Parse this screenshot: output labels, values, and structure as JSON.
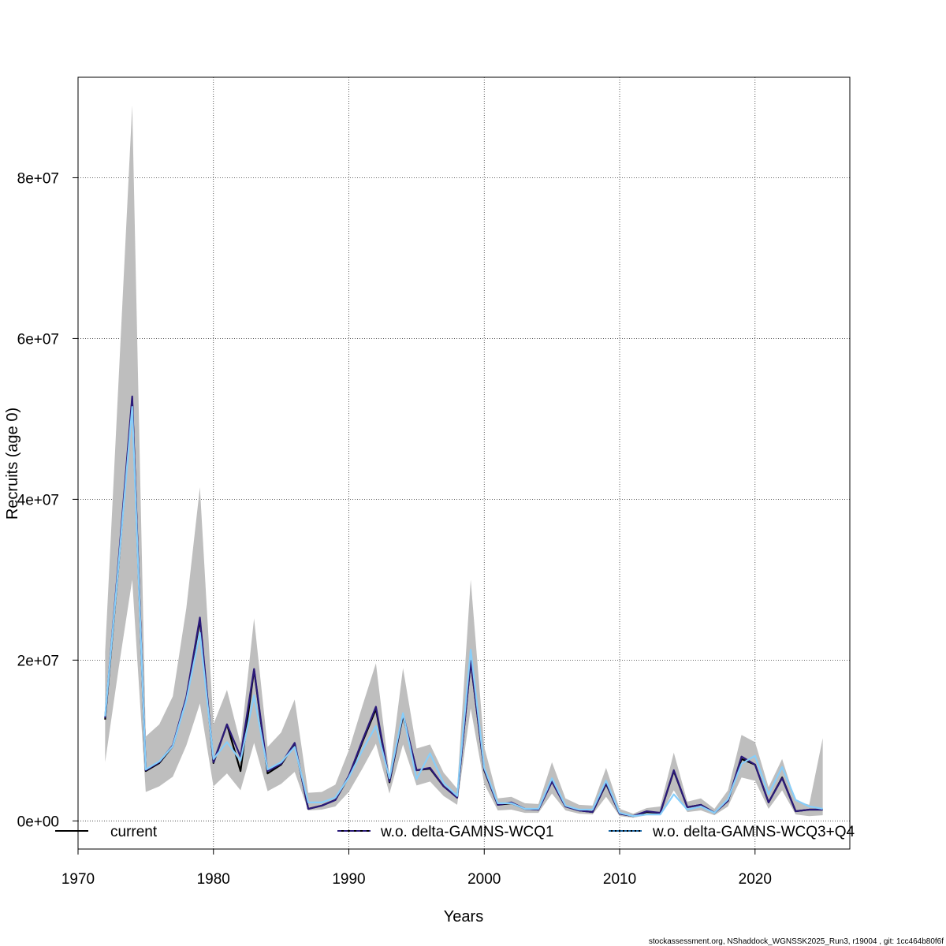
{
  "chart_data": {
    "type": "line",
    "xlabel": "Years",
    "ylabel": "Recruits (age 0)",
    "xlim": [
      1970,
      2027
    ],
    "ylim": [
      -3500000,
      92500000
    ],
    "x_ticks": [
      1970,
      1980,
      1990,
      2000,
      2010,
      2020
    ],
    "y_ticks": [
      0,
      20000000,
      40000000,
      60000000,
      80000000
    ],
    "y_tick_labels": [
      "0e+00",
      "2e+07",
      "4e+07",
      "6e+07",
      "8e+07"
    ],
    "grid": true,
    "legend_position": "bottom",
    "footer": "stockassessment.org, NShaddock_WGNSSK2025_Run3, r19004 , git: 1cc464b80f6f",
    "x": [
      1972,
      1973,
      1974,
      1975,
      1976,
      1977,
      1978,
      1979,
      1980,
      1981,
      1982,
      1983,
      1984,
      1985,
      1986,
      1987,
      1988,
      1989,
      1990,
      1991,
      1992,
      1993,
      1994,
      1995,
      1996,
      1997,
      1998,
      1999,
      2000,
      2001,
      2002,
      2003,
      2004,
      2005,
      2006,
      2007,
      2008,
      2009,
      2010,
      2011,
      2012,
      2013,
      2014,
      2015,
      2016,
      2017,
      2018,
      2019,
      2020,
      2021,
      2022,
      2023,
      2024,
      2025
    ],
    "band": {
      "color": "#bebebe",
      "upper": [
        21000000,
        55000000,
        89000000,
        10500000,
        12000000,
        15500000,
        26500000,
        41500000,
        12000000,
        16300000,
        9600000,
        25200000,
        9200000,
        11000000,
        15100000,
        3500000,
        3600000,
        4500000,
        8800000,
        14300000,
        19600000,
        5700000,
        19000000,
        9000000,
        9500000,
        6000000,
        4000000,
        30000000,
        9200000,
        2800000,
        3000000,
        2200000,
        2100000,
        7300000,
        2800000,
        2000000,
        1900000,
        6600000,
        1500000,
        900000,
        1600000,
        1800000,
        8500000,
        2400000,
        2800000,
        1500000,
        3800000,
        10700000,
        9800000,
        4200000,
        7700000,
        2500000,
        2000000,
        10300000
      ],
      "lower": [
        7300000,
        19000000,
        30000000,
        3600000,
        4300000,
        5500000,
        9400000,
        14600000,
        4300000,
        5900000,
        3800000,
        9700000,
        3700000,
        4600000,
        6100000,
        1300000,
        1400000,
        1800000,
        3600000,
        6500000,
        9600000,
        3400000,
        9500000,
        4400000,
        4900000,
        3100000,
        2000000,
        14000000,
        4600000,
        1300000,
        1400000,
        1000000,
        1000000,
        3400000,
        1300000,
        900000,
        800000,
        3000000,
        600000,
        400000,
        700000,
        700000,
        3800000,
        1100000,
        1300000,
        700000,
        1800000,
        5400000,
        5000000,
        1500000,
        3800000,
        800000,
        600000,
        700000
      ]
    },
    "series": [
      {
        "name": "current",
        "color": "#000000",
        "dash": "",
        "width": 2.2,
        "values": [
          12600000,
          32000000,
          52500000,
          6200000,
          7200000,
          9300000,
          15200000,
          25000000,
          7200000,
          12000000,
          6200000,
          18800000,
          5900000,
          7000000,
          9600000,
          1500000,
          1900000,
          2600000,
          5500000,
          9800000,
          13900000,
          4800000,
          13100000,
          6300000,
          6500000,
          4300000,
          2900000,
          19800000,
          6300000,
          2000000,
          2200000,
          1500000,
          1400000,
          4900000,
          1800000,
          1300000,
          1100000,
          4600000,
          900000,
          600000,
          1100000,
          1000000,
          6200000,
          1700000,
          2000000,
          1000000,
          2500000,
          7700000,
          7000000,
          2300000,
          5400000,
          1200000,
          1400000,
          1400000
        ]
      },
      {
        "name": "w.o. delta-GAMNS-WCQ1",
        "color": "#2b1a7a",
        "dash": "",
        "width": 2.2,
        "values": [
          12800000,
          32500000,
          52800000,
          6300000,
          7300000,
          9400000,
          15400000,
          25300000,
          7300000,
          12000000,
          8000000,
          18900000,
          6200000,
          7100000,
          9700000,
          1500000,
          1900000,
          2600000,
          5600000,
          10000000,
          14200000,
          4900000,
          13300000,
          6300000,
          6600000,
          4300000,
          2900000,
          19900000,
          6400000,
          2000000,
          2300000,
          1500000,
          1400000,
          4900000,
          1800000,
          1300000,
          1100000,
          4700000,
          900000,
          600000,
          1200000,
          1000000,
          6300000,
          1700000,
          2000000,
          1000000,
          2500000,
          8000000,
          7000000,
          2300000,
          5300000,
          1200000,
          1400000,
          1400000
        ]
      },
      {
        "name": "w.o. delta-GAMNS-WCQ3+Q4",
        "color": "#87cefa",
        "dash": "",
        "width": 2.2,
        "values": [
          13000000,
          32000000,
          51500000,
          6400000,
          7400000,
          9300000,
          15000000,
          23400000,
          7700000,
          9800000,
          7500000,
          15600000,
          6400000,
          7300000,
          9200000,
          2300000,
          2300000,
          2900000,
          5400000,
          8800000,
          11800000,
          5300000,
          13400000,
          5200000,
          8400000,
          4700000,
          3100000,
          21300000,
          6600000,
          2200000,
          2200000,
          1500000,
          1500000,
          5300000,
          1900000,
          1400000,
          1400000,
          5000000,
          1000000,
          600000,
          800000,
          800000,
          3300000,
          1400000,
          1800000,
          1000000,
          2700000,
          7100000,
          8100000,
          3300000,
          6700000,
          2600000,
          1800000,
          1500000
        ]
      }
    ],
    "legend": [
      {
        "label": "current",
        "color": "#000000",
        "dash": ""
      },
      {
        "label": "w.o. delta-GAMNS-WCQ1",
        "color": "#2b1a7a",
        "dash": "5,3",
        "under": "#000000"
      },
      {
        "label": "w.o. delta-GAMNS-WCQ3+Q4",
        "color": "#1e6aa8",
        "dash": "3,2",
        "under": "#000000"
      }
    ]
  }
}
